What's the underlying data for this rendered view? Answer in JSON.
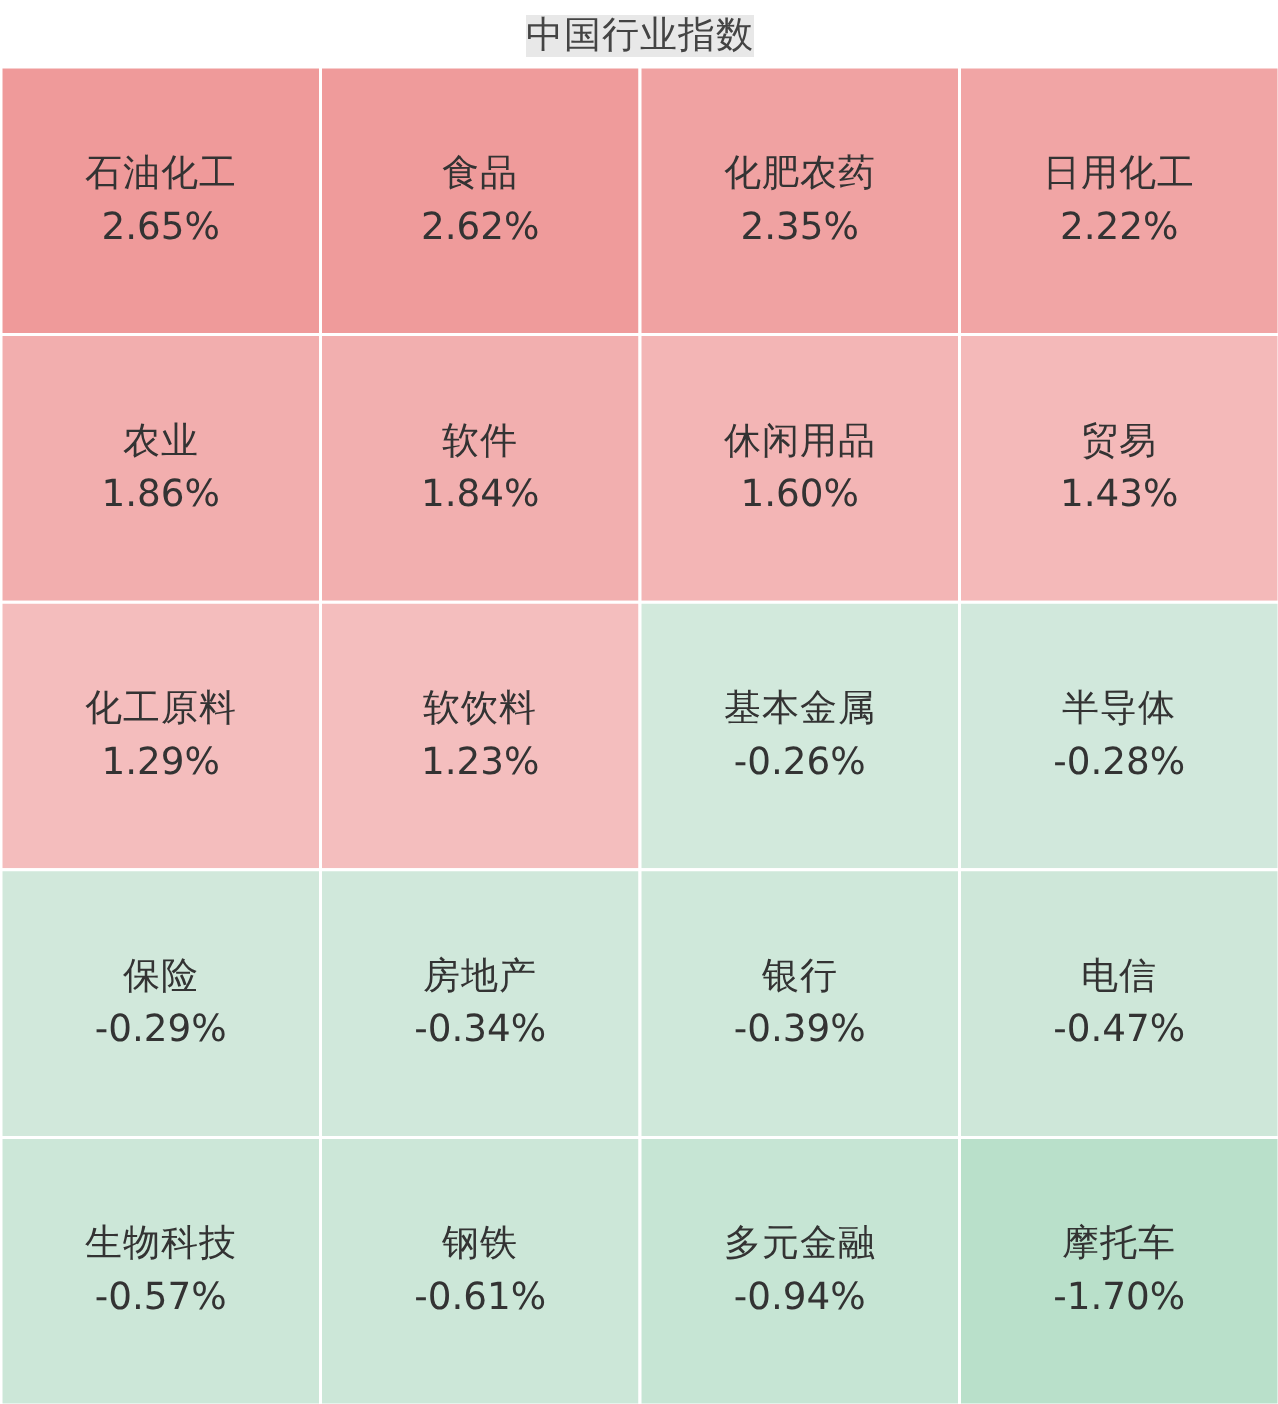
{
  "chart_data": {
    "type": "other",
    "title": "中国行业指数",
    "categories": [
      "石油化工",
      "食品",
      "化肥农药",
      "日用化工",
      "农业",
      "软件",
      "休闲用品",
      "贸易",
      "化工原料",
      "软饮料",
      "基本金属",
      "半导体",
      "保险",
      "房地产",
      "银行",
      "电信",
      "生物科技",
      "钢铁",
      "多元金融",
      "摩托车"
    ],
    "values": [
      2.65,
      2.62,
      2.35,
      2.22,
      1.86,
      1.84,
      1.6,
      1.43,
      1.29,
      1.23,
      -0.26,
      -0.28,
      -0.29,
      -0.34,
      -0.39,
      -0.47,
      -0.57,
      -0.61,
      -0.94,
      -1.7
    ],
    "value_labels": [
      "2.65%",
      "2.62%",
      "2.35%",
      "2.22%",
      "1.86%",
      "1.84%",
      "1.60%",
      "1.43%",
      "1.29%",
      "1.23%",
      "-0.26%",
      "-0.28%",
      "-0.29%",
      "-0.34%",
      "-0.39%",
      "-0.47%",
      "-0.57%",
      "-0.61%",
      "-0.94%",
      "-1.70%"
    ]
  }
}
